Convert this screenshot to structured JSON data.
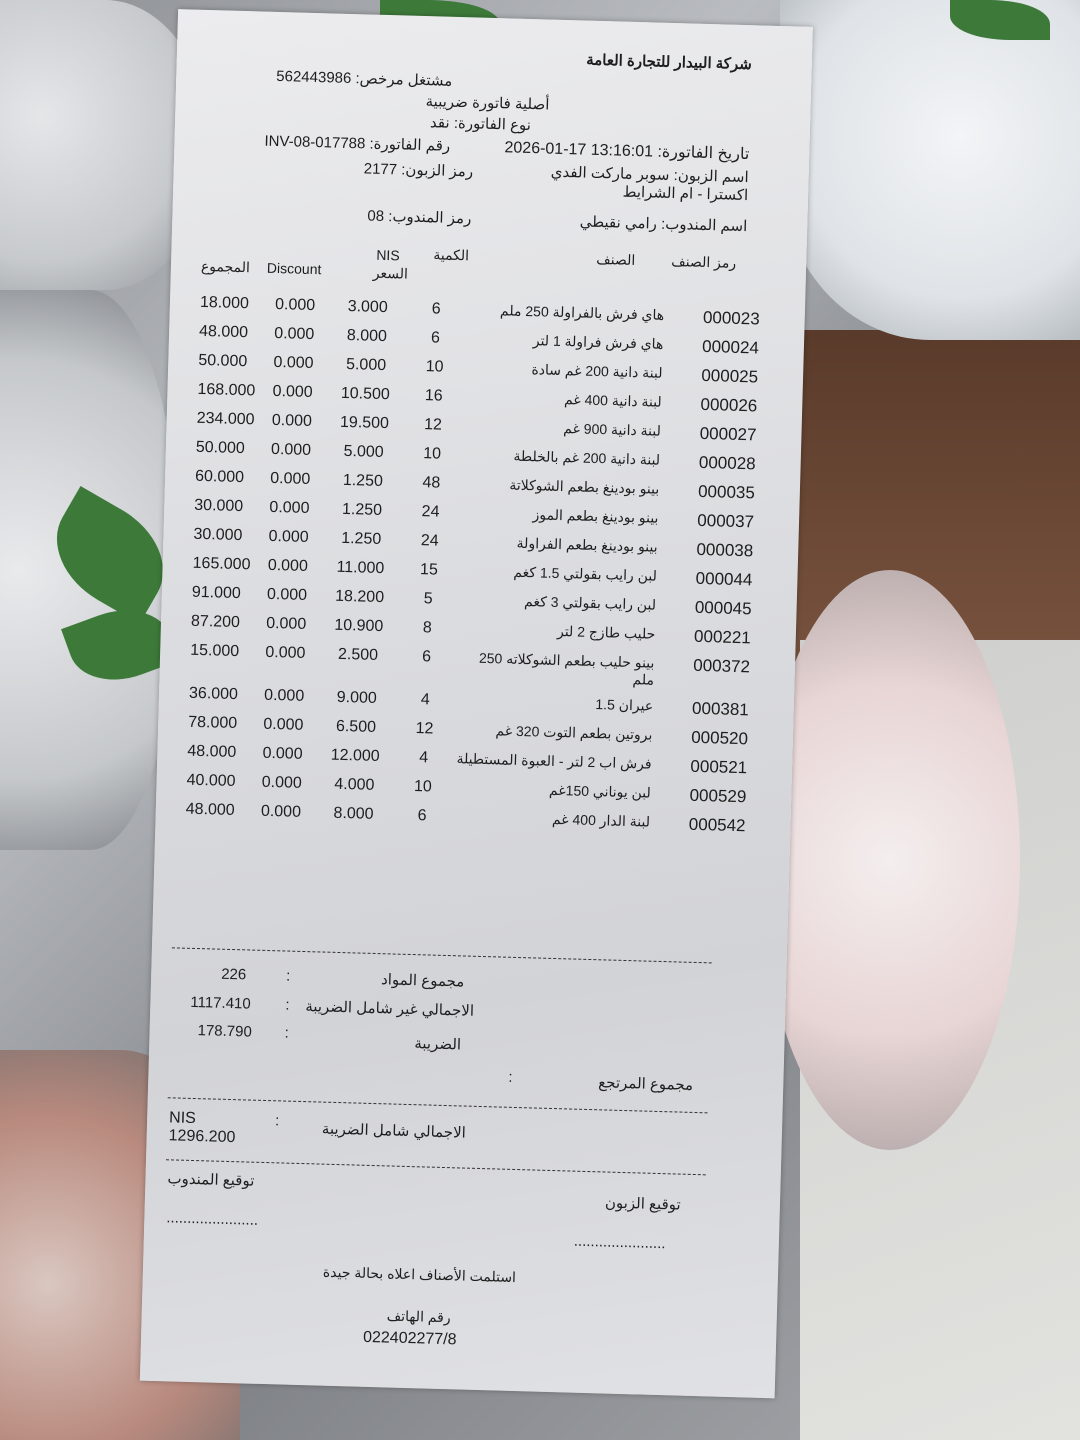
{
  "receipt": {
    "company": "شركة البيدار للتجارة العامة",
    "licensed_dealer_label": "مشتغل مرخص:",
    "licensed_dealer_no": "562443986",
    "original_label": "أصلية فاتورة ضريبية",
    "invoice_type": "نوع الفاتورة: نقد",
    "invoice_date_label": "تاريخ الفاتورة:",
    "invoice_date": "2026-01-17 13:16:01",
    "invoice_no_label": "رقم الفاتورة:",
    "invoice_no": "INV-08-017788",
    "customer_name_label": "اسم الزبون:",
    "customer_name": "سوبر ماركت الفدي اكسترا - ام الشرايط",
    "customer_code_label": "رمز الزبون:",
    "customer_code": "2177",
    "rep_name_label": "اسم المندوب:",
    "rep_name": "رامي نقيطي",
    "rep_code_label": "رمز المندوب:",
    "rep_code": "08",
    "columns": {
      "total": "المجموع",
      "discount": "Discount",
      "price_currency": "NIS",
      "price": "السعر",
      "qty": "الكمية",
      "name": "الصنف",
      "code": "رمز الصنف"
    },
    "items": [
      {
        "total": "18.000",
        "discount": "0.000",
        "price": "3.000",
        "qty": "6",
        "name": "هاي فرش بالفراولة 250 ملم",
        "code": "000023"
      },
      {
        "total": "48.000",
        "discount": "0.000",
        "price": "8.000",
        "qty": "6",
        "name": "هاي فرش فراولة 1 لتر",
        "code": "000024"
      },
      {
        "total": "50.000",
        "discount": "0.000",
        "price": "5.000",
        "qty": "10",
        "name": "لبنة دانية 200 غم سادة",
        "code": "000025"
      },
      {
        "total": "168.000",
        "discount": "0.000",
        "price": "10.500",
        "qty": "16",
        "name": "لبنة دانية 400 غم",
        "code": "000026"
      },
      {
        "total": "234.000",
        "discount": "0.000",
        "price": "19.500",
        "qty": "12",
        "name": "لبنة دانية 900 غم",
        "code": "000027"
      },
      {
        "total": "50.000",
        "discount": "0.000",
        "price": "5.000",
        "qty": "10",
        "name": "لبنة دانية 200 غم بالخلطة",
        "code": "000028"
      },
      {
        "total": "60.000",
        "discount": "0.000",
        "price": "1.250",
        "qty": "48",
        "name": "بينو بودينغ بطعم الشوكلاتة",
        "code": "000035"
      },
      {
        "total": "30.000",
        "discount": "0.000",
        "price": "1.250",
        "qty": "24",
        "name": "بينو بودينغ بطعم الموز",
        "code": "000037"
      },
      {
        "total": "30.000",
        "discount": "0.000",
        "price": "1.250",
        "qty": "24",
        "name": "بينو بودينغ بطعم الفراولة",
        "code": "000038"
      },
      {
        "total": "165.000",
        "discount": "0.000",
        "price": "11.000",
        "qty": "15",
        "name": "لبن رايب بقولتي 1.5 كغم",
        "code": "000044"
      },
      {
        "total": "91.000",
        "discount": "0.000",
        "price": "18.200",
        "qty": "5",
        "name": "لبن رايب بقولتي 3 كغم",
        "code": "000045"
      },
      {
        "total": "87.200",
        "discount": "0.000",
        "price": "10.900",
        "qty": "8",
        "name": "حليب طازج 2 لتر",
        "code": "000221"
      },
      {
        "total": "15.000",
        "discount": "0.000",
        "price": "2.500",
        "qty": "6",
        "name": "بينو حليب بطعم الشوكلاته 250 ملم",
        "code": "000372"
      },
      {
        "total": "36.000",
        "discount": "0.000",
        "price": "9.000",
        "qty": "4",
        "name": "عيران 1.5",
        "code": "000381"
      },
      {
        "total": "78.000",
        "discount": "0.000",
        "price": "6.500",
        "qty": "12",
        "name": "بروتين بطعم التوت 320 غم",
        "code": "000520"
      },
      {
        "total": "48.000",
        "discount": "0.000",
        "price": "12.000",
        "qty": "4",
        "name": "فرش اب 2 لتر - العبوة المستطيلة",
        "code": "000521"
      },
      {
        "total": "40.000",
        "discount": "0.000",
        "price": "4.000",
        "qty": "10",
        "name": "لبن يوناني 150غم",
        "code": "000529"
      },
      {
        "total": "48.000",
        "discount": "0.000",
        "price": "8.000",
        "qty": "6",
        "name": "لبنة الدار 400 غم",
        "code": "000542"
      }
    ],
    "summary": {
      "items_count_label": "مجموع المواد",
      "items_count": "226",
      "subtotal_label": "الاجمالي غير شامل الضريبة",
      "subtotal": "1117.410",
      "tax_label": "الضريبة",
      "tax": "178.790",
      "returns_label": "مجموع المرتجع",
      "grand_total_label": "الاجمالي شامل الضريبة",
      "grand_total": "NIS 1296.200",
      "colon": ":"
    },
    "rep_signature_label": "توقيع المندوب",
    "customer_signature_label": "توقيع الزبون",
    "signature_line": "......................",
    "received_note": "استلمت الأصناف اعلاه بحالة جيدة",
    "phone_label": "رقم الهاتف",
    "phone": "022402277/8"
  }
}
